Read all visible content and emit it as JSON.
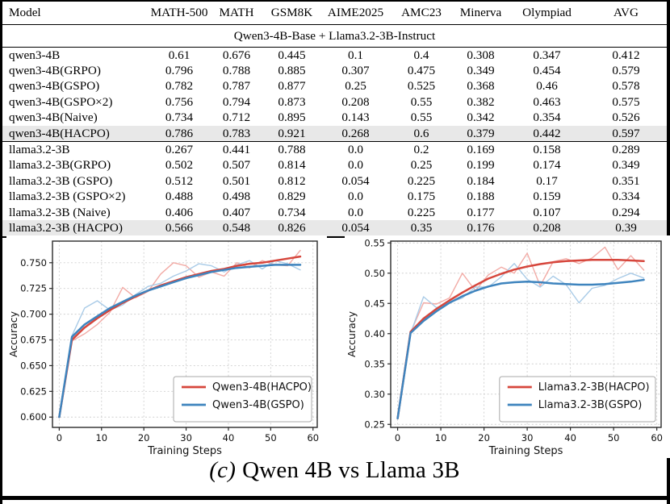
{
  "table": {
    "columns": [
      "Model",
      "MATH-500",
      "MATH",
      "GSM8K",
      "AIME2025",
      "AMC23",
      "Minerva",
      "Olympiad",
      "AVG"
    ],
    "group_header": "Qwen3-4B-Base + Llama3.2-3B-Instruct",
    "rows": [
      {
        "model": "qwen3-4B",
        "values": [
          "0.61",
          "0.676",
          "0.445",
          "0.1",
          "0.4",
          "0.308",
          "0.347",
          "0.412"
        ],
        "bold": [],
        "highlight": false
      },
      {
        "model": "qwen3-4B(GRPO)",
        "values": [
          "0.796",
          "0.788",
          "0.885",
          "0.307",
          "0.475",
          "0.349",
          "0.454",
          "0.579"
        ],
        "bold": [
          0,
          3
        ],
        "highlight": false
      },
      {
        "model": "qwen3-4B(GSPO)",
        "values": [
          "0.782",
          "0.787",
          "0.877",
          "0.25",
          "0.525",
          "0.368",
          "0.46",
          "0.578"
        ],
        "bold": [
          6
        ],
        "highlight": false
      },
      {
        "model": "qwen3-4B(GSPO×2)",
        "values": [
          "0.756",
          "0.794",
          "0.873",
          "0.208",
          "0.55",
          "0.382",
          "0.463",
          "0.575"
        ],
        "bold": [
          1,
          5
        ],
        "highlight": false
      },
      {
        "model": "qwen3-4B(Naive)",
        "values": [
          "0.734",
          "0.712",
          "0.895",
          "0.143",
          "0.55",
          "0.342",
          "0.354",
          "0.526"
        ],
        "bold": [],
        "highlight": false
      },
      {
        "model": "qwen3-4B(HACPO)",
        "values": [
          "0.786",
          "0.783",
          "0.921",
          "0.268",
          "0.6",
          "0.379",
          "0.442",
          "0.597"
        ],
        "bold": [
          2,
          4,
          7
        ],
        "highlight": true
      },
      {
        "model": "llama3.2-3B",
        "values": [
          "0.267",
          "0.441",
          "0.788",
          "0.0",
          "0.2",
          "0.169",
          "0.158",
          "0.289"
        ],
        "bold": [],
        "highlight": false
      },
      {
        "model": "llama3.2-3B(GRPO)",
        "values": [
          "0.502",
          "0.507",
          "0.814",
          "0.0",
          "0.25",
          "0.199",
          "0.174",
          "0.349"
        ],
        "bold": [
          5
        ],
        "highlight": false
      },
      {
        "model": "llama3.2-3B (GSPO)",
        "values": [
          "0.512",
          "0.501",
          "0.812",
          "0.054",
          "0.225",
          "0.184",
          "0.17",
          "0.351"
        ],
        "bold": [],
        "highlight": false
      },
      {
        "model": "llama3.2-3B (GSPO×2)",
        "values": [
          "0.488",
          "0.498",
          "0.829",
          "0.0",
          "0.175",
          "0.188",
          "0.159",
          "0.334"
        ],
        "bold": [
          2
        ],
        "highlight": false
      },
      {
        "model": "llama3.2-3B (Naive)",
        "values": [
          "0.406",
          "0.407",
          "0.734",
          "0.0",
          "0.225",
          "0.177",
          "0.107",
          "0.294"
        ],
        "bold": [],
        "highlight": false
      },
      {
        "model": "llama3.2-3B (HACPO)",
        "values": [
          "0.566",
          "0.548",
          "0.826",
          "0.054",
          "0.35",
          "0.176",
          "0.208",
          "0.39"
        ],
        "bold": [
          0,
          1,
          3,
          4,
          6,
          7
        ],
        "highlight": true
      }
    ]
  },
  "caption": {
    "label": "(c)",
    "text": "Qwen 4B vs Llama 3B"
  },
  "colors": {
    "red": "#d6463c",
    "blue": "#3e84be",
    "red_raw": "#f2aba6",
    "blue_raw": "#a9cbe7",
    "highlight_row": "#e8e8e8",
    "grid": "#cfcfcf",
    "frame": "#2a2a2a"
  },
  "chart_data": [
    {
      "type": "line",
      "title": "",
      "xlabel": "Training Steps",
      "ylabel": "Accuracy",
      "xlim": [
        -1.6,
        61
      ],
      "ylim": [
        0.59,
        0.771
      ],
      "xticks": [
        0,
        10,
        20,
        30,
        40,
        50,
        60
      ],
      "yticks": [
        0.6,
        0.625,
        0.65,
        0.675,
        0.7,
        0.725,
        0.75
      ],
      "ytick_labels": [
        "0.600",
        "0.625",
        "0.650",
        "0.675",
        "0.700",
        "0.725",
        "0.750"
      ],
      "grid": true,
      "legend_position": "lower right",
      "x": [
        0,
        3,
        6,
        9,
        12,
        15,
        18,
        21,
        24,
        27,
        30,
        33,
        36,
        39,
        42,
        45,
        48,
        51,
        54,
        57
      ],
      "series": [
        {
          "name": "Qwen3-4B(HACPO) raw",
          "style": "raw",
          "color": "red",
          "values": [
            0.6,
            0.674,
            0.681,
            0.69,
            0.702,
            0.726,
            0.716,
            0.722,
            0.739,
            0.75,
            0.747,
            0.736,
            0.741,
            0.737,
            0.75,
            0.745,
            0.752,
            0.748,
            0.747,
            0.762
          ]
        },
        {
          "name": "Qwen3-4B(GSPO) raw",
          "style": "raw",
          "color": "blue",
          "values": [
            0.6,
            0.679,
            0.706,
            0.713,
            0.704,
            0.709,
            0.719,
            0.727,
            0.73,
            0.737,
            0.742,
            0.749,
            0.747,
            0.741,
            0.748,
            0.752,
            0.744,
            0.752,
            0.749,
            0.743
          ]
        },
        {
          "name": "Qwen3-4B(HACPO)",
          "style": "smooth",
          "color": "red",
          "values": [
            0.6,
            0.675,
            0.687,
            0.696,
            0.704,
            0.711,
            0.717,
            0.723,
            0.728,
            0.732,
            0.736,
            0.739,
            0.742,
            0.744,
            0.747,
            0.749,
            0.75,
            0.752,
            0.754,
            0.756
          ]
        },
        {
          "name": "Qwen3-4B(GSPO)",
          "style": "smooth",
          "color": "blue",
          "values": [
            0.6,
            0.678,
            0.69,
            0.698,
            0.706,
            0.712,
            0.718,
            0.723,
            0.727,
            0.731,
            0.735,
            0.738,
            0.741,
            0.743,
            0.745,
            0.746,
            0.747,
            0.748,
            0.748,
            0.748
          ]
        }
      ],
      "legend": [
        {
          "label": "Qwen3-4B(HACPO)",
          "color": "red"
        },
        {
          "label": "Qwen3-4B(GSPO)",
          "color": "blue"
        }
      ]
    },
    {
      "type": "line",
      "title": "",
      "xlabel": "Training Steps",
      "ylabel": "Accuracy",
      "xlim": [
        -1.6,
        61
      ],
      "ylim": [
        0.245,
        0.553
      ],
      "xticks": [
        0,
        10,
        20,
        30,
        40,
        50,
        60
      ],
      "yticks": [
        0.25,
        0.3,
        0.35,
        0.4,
        0.45,
        0.5,
        0.55
      ],
      "ytick_labels": [
        "0.25",
        "0.30",
        "0.35",
        "0.40",
        "0.45",
        "0.50",
        "0.55"
      ],
      "grid": true,
      "legend_position": "lower right",
      "x": [
        0,
        3,
        6,
        9,
        12,
        15,
        18,
        21,
        24,
        27,
        30,
        33,
        36,
        39,
        42,
        45,
        48,
        51,
        54,
        57
      ],
      "series": [
        {
          "name": "Llama3.2-3B(HACPO) raw",
          "style": "raw",
          "color": "red",
          "values": [
            0.26,
            0.402,
            0.451,
            0.449,
            0.459,
            0.5,
            0.471,
            0.497,
            0.51,
            0.5,
            0.533,
            0.479,
            0.519,
            0.524,
            0.516,
            0.525,
            0.543,
            0.506,
            0.529,
            0.505
          ]
        },
        {
          "name": "Llama3.2-3B(GSPO) raw",
          "style": "raw",
          "color": "blue",
          "values": [
            0.26,
            0.4,
            0.461,
            0.443,
            0.451,
            0.459,
            0.477,
            0.477,
            0.494,
            0.516,
            0.49,
            0.477,
            0.495,
            0.481,
            0.451,
            0.475,
            0.48,
            0.491,
            0.5,
            0.492
          ]
        },
        {
          "name": "Llama3.2-3B(HACPO)",
          "style": "smooth",
          "color": "red",
          "values": [
            0.26,
            0.403,
            0.425,
            0.441,
            0.455,
            0.468,
            0.48,
            0.491,
            0.499,
            0.506,
            0.511,
            0.515,
            0.518,
            0.52,
            0.521,
            0.522,
            0.522,
            0.522,
            0.521,
            0.52
          ]
        },
        {
          "name": "Llama3.2-3B(GSPO)",
          "style": "smooth",
          "color": "blue",
          "values": [
            0.26,
            0.401,
            0.421,
            0.437,
            0.451,
            0.462,
            0.471,
            0.478,
            0.483,
            0.485,
            0.486,
            0.485,
            0.483,
            0.482,
            0.481,
            0.481,
            0.482,
            0.484,
            0.486,
            0.489
          ]
        }
      ],
      "legend": [
        {
          "label": "Llama3.2-3B(HACPO)",
          "color": "red"
        },
        {
          "label": "Llama3.2-3B(GSPO)",
          "color": "blue"
        }
      ]
    }
  ]
}
